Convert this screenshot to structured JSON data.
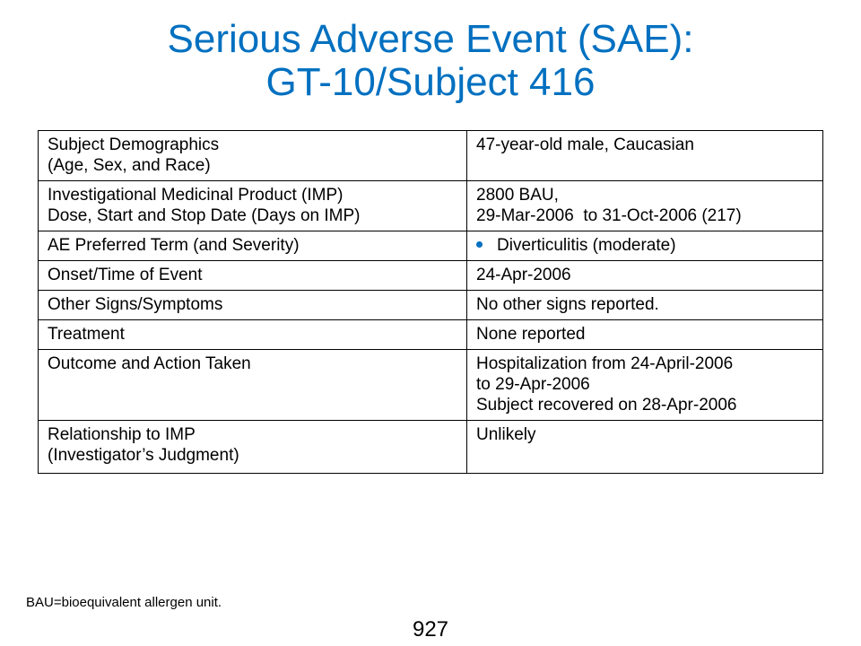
{
  "title": {
    "line1": "Serious Adverse Event (SAE):",
    "line2": "GT-10/Subject 416"
  },
  "colors": {
    "title": "#0070c0",
    "bullet": "#0070c0"
  },
  "table": {
    "rows": [
      {
        "label": [
          "Subject Demographics",
          "(Age, Sex, and Race)"
        ],
        "value": [
          "47-year-old male, Caucasian"
        ]
      },
      {
        "label": [
          "Investigational Medicinal Product (IMP)",
          "Dose, Start and Stop Date (Days on IMP)"
        ],
        "value": [
          "2800 BAU,",
          "29-Mar-2006  to 31-Oct-2006 (217)"
        ]
      },
      {
        "label": [
          "AE Preferred Term (and Severity)"
        ],
        "value": [
          "Diverticulitis (moderate)"
        ]
      },
      {
        "label": [
          "Onset/Time of Event"
        ],
        "value": [
          "24-Apr-2006"
        ]
      },
      {
        "label": [
          "Other Signs/Symptoms"
        ],
        "value": [
          "No other signs reported."
        ]
      },
      {
        "label": [
          "Treatment"
        ],
        "value": [
          "None reported"
        ]
      },
      {
        "label": [
          "Outcome and Action Taken"
        ],
        "value": [
          "Hospitalization from 24-April-2006",
          "to 29-Apr-2006",
          "Subject recovered on 28-Apr-2006"
        ]
      },
      {
        "label": [
          "Relationship to IMP",
          "(Investigator’s Judgment)"
        ],
        "value": [
          "Unlikely"
        ]
      }
    ]
  },
  "footnote": "BAU=bioequivalent allergen unit.",
  "page_number": "927"
}
